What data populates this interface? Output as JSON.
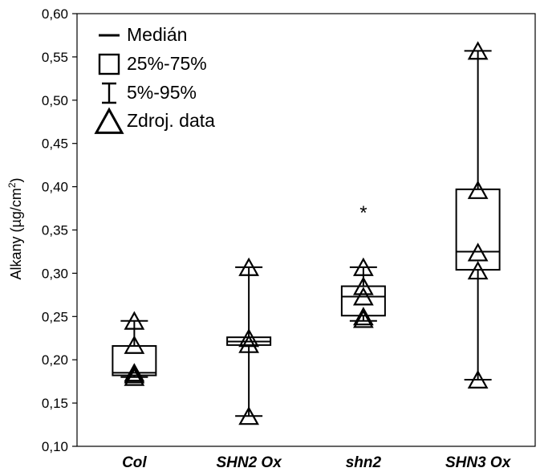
{
  "chart_data": {
    "type": "box",
    "ylabel": "Alkany (µg/cm²)",
    "ylabel_parts": {
      "main": "Alkany (µg/cm",
      "sup": "2",
      "close": ")"
    },
    "ylim": [
      0.1,
      0.6
    ],
    "yticks": [
      0.1,
      0.15,
      0.2,
      0.25,
      0.3,
      0.35,
      0.4,
      0.45,
      0.5,
      0.55,
      0.6
    ],
    "ytick_labels": [
      "0,10",
      "0,15",
      "0,20",
      "0,25",
      "0,30",
      "0,35",
      "0,40",
      "0,45",
      "0,50",
      "0,55",
      "0,60"
    ],
    "grid": false,
    "legend": {
      "position": "top-left",
      "items": [
        {
          "key": "median",
          "label": "Medián"
        },
        {
          "key": "box",
          "label": "25%-75%"
        },
        {
          "key": "whisker",
          "label": " 5%-95%"
        },
        {
          "key": "raw",
          "label": "Zdroj. data"
        }
      ]
    },
    "categories": [
      "Col",
      "SHN2 Ox",
      "shn2",
      "SHN3 Ox"
    ],
    "groups": [
      {
        "name": "Col",
        "median": 0.185,
        "q1": 0.182,
        "q3": 0.216,
        "whisker_low": 0.18,
        "whisker_high": 0.245,
        "points": [
          0.245,
          0.217,
          0.185,
          0.183,
          0.18
        ],
        "markers": []
      },
      {
        "name": "SHN2 Ox",
        "median": 0.221,
        "q1": 0.217,
        "q3": 0.226,
        "whisker_low": 0.135,
        "whisker_high": 0.307,
        "points": [
          0.307,
          0.225,
          0.218,
          0.135
        ],
        "markers": []
      },
      {
        "name": "shn2",
        "median": 0.273,
        "q1": 0.251,
        "q3": 0.285,
        "whisker_low": 0.245,
        "whisker_high": 0.307,
        "points": [
          0.307,
          0.285,
          0.273,
          0.25,
          0.247
        ],
        "markers": [
          {
            "value": 0.372,
            "label": "*"
          }
        ]
      },
      {
        "name": "SHN3 Ox",
        "median": 0.325,
        "q1": 0.304,
        "q3": 0.397,
        "whisker_low": 0.177,
        "whisker_high": 0.557,
        "points": [
          0.557,
          0.396,
          0.324,
          0.303,
          0.177
        ],
        "markers": []
      }
    ]
  }
}
